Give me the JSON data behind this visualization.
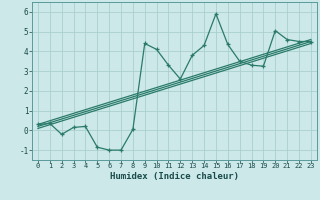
{
  "xlabel": "Humidex (Indice chaleur)",
  "ylabel": "",
  "xlim": [
    -0.5,
    23.5
  ],
  "ylim": [
    -1.5,
    6.5
  ],
  "yticks": [
    -1,
    0,
    1,
    2,
    3,
    4,
    5,
    6
  ],
  "xticks": [
    0,
    1,
    2,
    3,
    4,
    5,
    6,
    7,
    8,
    9,
    10,
    11,
    12,
    13,
    14,
    15,
    16,
    17,
    18,
    19,
    20,
    21,
    22,
    23
  ],
  "bg_color": "#cce8e8",
  "grid_color": "#aacfcf",
  "line_color": "#2a7a6a",
  "series1_x": [
    0,
    1,
    2,
    3,
    4,
    5,
    6,
    7,
    8,
    9,
    10,
    11,
    12,
    13,
    14,
    15,
    16,
    17,
    18,
    19,
    20,
    21,
    22,
    23
  ],
  "series1_y": [
    0.3,
    0.35,
    -0.2,
    0.15,
    0.2,
    -0.85,
    -1.0,
    -1.0,
    0.05,
    4.4,
    4.1,
    3.3,
    2.6,
    3.8,
    4.3,
    5.9,
    4.35,
    3.5,
    3.3,
    3.25,
    5.05,
    4.6,
    4.5,
    4.5
  ],
  "series2_x": [
    0,
    23
  ],
  "series2_y": [
    0.3,
    4.6
  ],
  "series3_x": [
    0,
    23
  ],
  "series3_y": [
    0.2,
    4.5
  ],
  "series4_x": [
    0,
    23
  ],
  "series4_y": [
    0.1,
    4.4
  ],
  "xlabel_fontsize": 6.5,
  "tick_fontsize": 5.0
}
